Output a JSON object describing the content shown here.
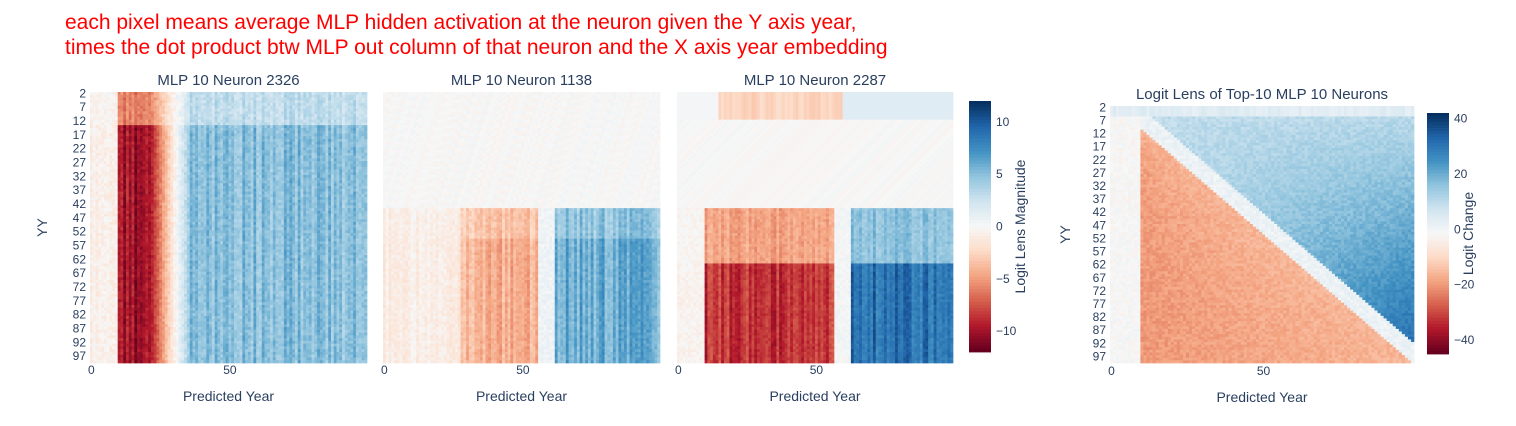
{
  "annotation": {
    "line1": "each pixel means average MLP hidden activation at the neuron given the Y axis year,",
    "line2": "times the dot product btw MLP out column of that neuron and the X axis year embedding"
  },
  "colors": {
    "colorscale": [
      "#67001f",
      "#b2182b",
      "#d6604d",
      "#f4a582",
      "#fddbc7",
      "#f7f7f7",
      "#d1e5f0",
      "#92c5de",
      "#4393c3",
      "#2166ac",
      "#053061"
    ],
    "text": "#2a3f5f",
    "annotation": "#ff0000"
  },
  "chart_data": [
    {
      "type": "heatmap",
      "title": "MLP 10 Neuron 2326",
      "xlabel": "Predicted Year",
      "ylabel": "YY",
      "x_range": [
        0,
        99
      ],
      "y_range": [
        2,
        99
      ],
      "x_ticks": [
        "0",
        "50"
      ],
      "y_ticks": [
        "2",
        "7",
        "12",
        "17",
        "22",
        "27",
        "32",
        "37",
        "42",
        "47",
        "52",
        "57",
        "62",
        "67",
        "72",
        "77",
        "82",
        "87",
        "92",
        "97"
      ],
      "color_range": [
        -12,
        12
      ],
      "pattern": "strong negative for predicted years ~10-20 at all YY; positive for predicted years ~35-99"
    },
    {
      "type": "heatmap",
      "title": "MLP 10 Neuron 1138",
      "xlabel": "Predicted Year",
      "ylabel": "",
      "x_range": [
        0,
        99
      ],
      "y_range": [
        2,
        99
      ],
      "x_ticks": [
        "0",
        "50"
      ],
      "y_ticks": [],
      "color_range": [
        -12,
        12
      ],
      "pattern": "near zero for YY<45; for YY>45 negative at predicted 30-55 and positive at predicted 65-99"
    },
    {
      "type": "heatmap",
      "title": "MLP 10 Neuron 2287",
      "xlabel": "Predicted Year",
      "ylabel": "",
      "x_range": [
        0,
        99
      ],
      "y_range": [
        2,
        99
      ],
      "x_ticks": [
        "0",
        "50"
      ],
      "y_ticks": [],
      "color_range": [
        -12,
        12
      ],
      "colorbar": {
        "title": "Logit Lens Magnitude",
        "ticks": [
          10,
          5,
          0,
          -5,
          -10
        ],
        "tick_labels": [
          "10",
          "5",
          "0",
          "−5",
          "−10"
        ]
      },
      "pattern": "for YY>45 strong negative at predicted 10-55 and strong positive at predicted 65-99; weak band near YY 2-12"
    },
    {
      "type": "heatmap",
      "title": "Logit Lens of Top-10 MLP 10 Neurons",
      "xlabel": "Predicted Year",
      "ylabel": "YY",
      "x_range": [
        0,
        99
      ],
      "y_range": [
        2,
        99
      ],
      "x_ticks": [
        "0",
        "50"
      ],
      "y_ticks": [
        "2",
        "7",
        "12",
        "17",
        "22",
        "27",
        "32",
        "37",
        "42",
        "47",
        "52",
        "57",
        "62",
        "67",
        "72",
        "77",
        "82",
        "87",
        "92",
        "97"
      ],
      "color_range": [
        -45,
        42
      ],
      "colorbar": {
        "title": "Logit Change",
        "ticks": [
          40,
          20,
          0,
          -20,
          -40
        ],
        "tick_labels": [
          "40",
          "20",
          "0",
          "−20",
          "−40"
        ]
      },
      "pattern": "negative for predicted years between ~10 and YY; positive for predicted years above YY, strongest at high YY and high predicted year"
    }
  ]
}
